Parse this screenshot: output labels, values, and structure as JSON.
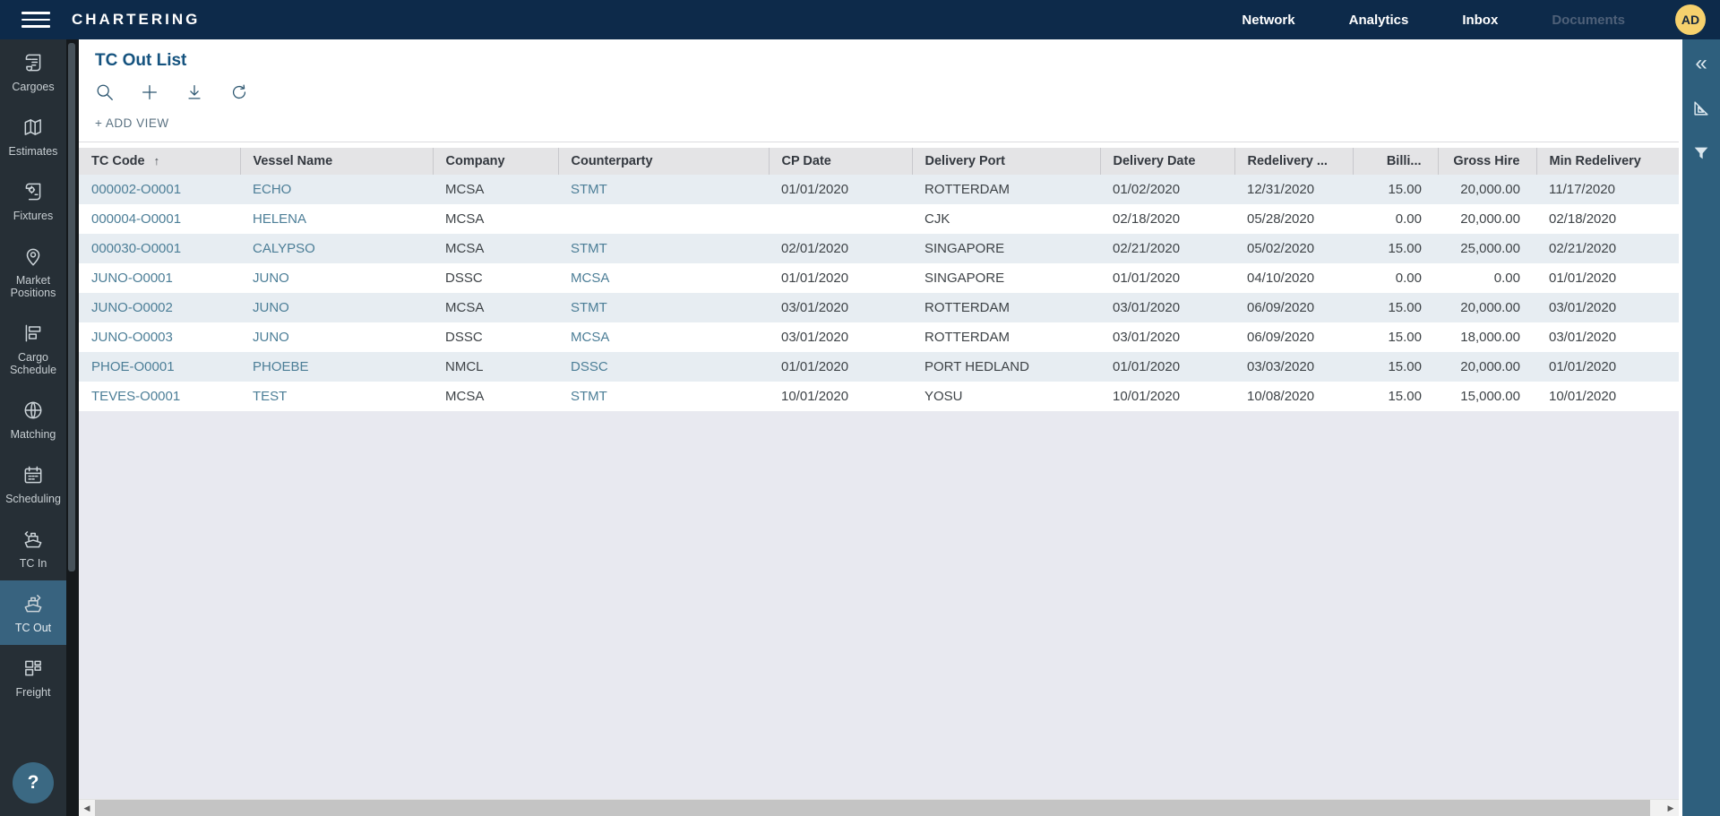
{
  "app": {
    "title": "CHARTERING"
  },
  "topnav": {
    "items": [
      {
        "label": "Network",
        "enabled": true
      },
      {
        "label": "Analytics",
        "enabled": true
      },
      {
        "label": "Inbox",
        "enabled": true
      },
      {
        "label": "Documents",
        "enabled": false
      }
    ],
    "avatar": "AD"
  },
  "sidebar": {
    "items": [
      {
        "label": "Cargoes",
        "icon": "scroll",
        "active": false
      },
      {
        "label": "Estimates",
        "icon": "map",
        "active": false
      },
      {
        "label": "Fixtures",
        "icon": "scroll-gear",
        "active": false
      },
      {
        "label": "Market Positions",
        "icon": "map-pin",
        "active": false
      },
      {
        "label": "Cargo Schedule",
        "icon": "gantt",
        "active": false
      },
      {
        "label": "Matching",
        "icon": "globe",
        "active": false
      },
      {
        "label": "Scheduling",
        "icon": "calendar",
        "active": false
      },
      {
        "label": "TC In",
        "icon": "ship-in",
        "active": false
      },
      {
        "label": "TC Out",
        "icon": "ship-out",
        "active": true
      },
      {
        "label": "Freight",
        "icon": "grid",
        "active": false
      }
    ],
    "help_label": "?"
  },
  "page": {
    "title": "TC Out List",
    "add_view_label": "+ ADD VIEW"
  },
  "toolbar": {
    "buttons": [
      {
        "name": "search",
        "icon": "search"
      },
      {
        "name": "add",
        "icon": "plus"
      },
      {
        "name": "export",
        "icon": "download"
      },
      {
        "name": "reset",
        "icon": "undo"
      }
    ]
  },
  "table": {
    "columns": [
      {
        "label": "TC Code",
        "sort": "asc"
      },
      {
        "label": "Vessel Name"
      },
      {
        "label": "Company"
      },
      {
        "label": "Counterparty"
      },
      {
        "label": "CP Date"
      },
      {
        "label": "Delivery Port"
      },
      {
        "label": "Delivery Date"
      },
      {
        "label": "Redelivery ..."
      },
      {
        "label": "Billi...",
        "align": "right"
      },
      {
        "label": "Gross Hire",
        "align": "right"
      },
      {
        "label": "Min Redelivery"
      }
    ],
    "rows": [
      {
        "tc_code": "000002-O0001",
        "vessel_name": "ECHO",
        "company": "MCSA",
        "counterparty": "STMT",
        "cp_date": "01/01/2020",
        "delivery_port": "ROTTERDAM",
        "delivery_date": "01/02/2020",
        "redelivery": "12/31/2020",
        "billing": "15.00",
        "gross_hire": "20,000.00",
        "min_redelivery": "11/17/2020"
      },
      {
        "tc_code": "000004-O0001",
        "vessel_name": "HELENA",
        "company": "MCSA",
        "counterparty": "",
        "cp_date": "",
        "delivery_port": "CJK",
        "delivery_date": "02/18/2020",
        "redelivery": "05/28/2020",
        "billing": "0.00",
        "gross_hire": "20,000.00",
        "min_redelivery": "02/18/2020"
      },
      {
        "tc_code": "000030-O0001",
        "vessel_name": "CALYPSO",
        "company": "MCSA",
        "counterparty": "STMT",
        "cp_date": "02/01/2020",
        "delivery_port": "SINGAPORE",
        "delivery_date": "02/21/2020",
        "redelivery": "05/02/2020",
        "billing": "15.00",
        "gross_hire": "25,000.00",
        "min_redelivery": "02/21/2020"
      },
      {
        "tc_code": "JUNO-O0001",
        "vessel_name": "JUNO",
        "company": "DSSC",
        "counterparty": "MCSA",
        "cp_date": "01/01/2020",
        "delivery_port": "SINGAPORE",
        "delivery_date": "01/01/2020",
        "redelivery": "04/10/2020",
        "billing": "0.00",
        "gross_hire": "0.00",
        "min_redelivery": "01/01/2020"
      },
      {
        "tc_code": "JUNO-O0002",
        "vessel_name": "JUNO",
        "company": "MCSA",
        "counterparty": "STMT",
        "cp_date": "03/01/2020",
        "delivery_port": "ROTTERDAM",
        "delivery_date": "03/01/2020",
        "redelivery": "06/09/2020",
        "billing": "15.00",
        "gross_hire": "20,000.00",
        "min_redelivery": "03/01/2020"
      },
      {
        "tc_code": "JUNO-O0003",
        "vessel_name": "JUNO",
        "company": "DSSC",
        "counterparty": "MCSA",
        "cp_date": "03/01/2020",
        "delivery_port": "ROTTERDAM",
        "delivery_date": "03/01/2020",
        "redelivery": "06/09/2020",
        "billing": "15.00",
        "gross_hire": "18,000.00",
        "min_redelivery": "03/01/2020"
      },
      {
        "tc_code": "PHOE-O0001",
        "vessel_name": "PHOEBE",
        "company": "NMCL",
        "counterparty": "DSSC",
        "cp_date": "01/01/2020",
        "delivery_port": "PORT HEDLAND",
        "delivery_date": "01/01/2020",
        "redelivery": "03/03/2020",
        "billing": "15.00",
        "gross_hire": "20,000.00",
        "min_redelivery": "01/01/2020"
      },
      {
        "tc_code": "TEVES-O0001",
        "vessel_name": "TEST",
        "company": "MCSA",
        "counterparty": "STMT",
        "cp_date": "10/01/2020",
        "delivery_port": "YOSU",
        "delivery_date": "10/01/2020",
        "redelivery": "10/08/2020",
        "billing": "15.00",
        "gross_hire": "15,000.00",
        "min_redelivery": "10/01/2020"
      }
    ]
  },
  "right_panel": {
    "icons": [
      "collapse",
      "set-square",
      "filter"
    ]
  },
  "colors": {
    "topbar": "#0d2a4a",
    "accent": "#2e5f7d",
    "link": "#4c7e97",
    "avatar_bg": "#f6d16d",
    "row_alt": "#e7edf2"
  }
}
